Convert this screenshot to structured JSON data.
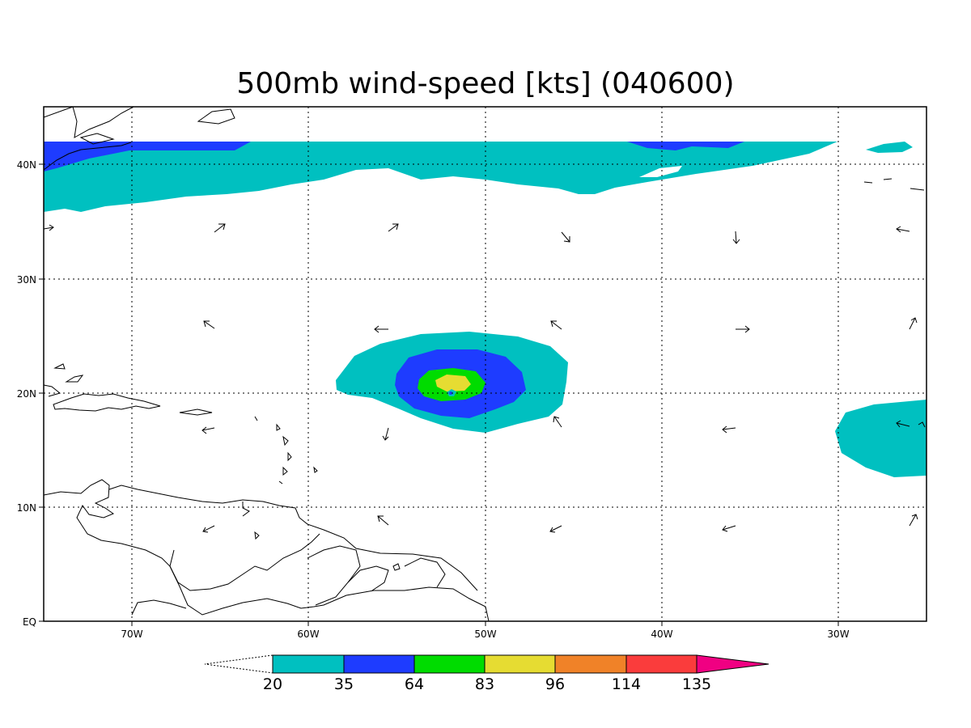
{
  "title": "500mb wind-speed [kts] (040600)",
  "x_tick_labels": [
    "70W",
    "60W",
    "50W",
    "40W",
    "30W"
  ],
  "y_tick_labels": [
    "EQ",
    "10N",
    "20N",
    "30N",
    "40N"
  ],
  "colorbar": {
    "labels": [
      "20",
      "35",
      "64",
      "83",
      "96",
      "114",
      "135"
    ],
    "colors": [
      "#00c0c0",
      "#1e3cff",
      "#00dc00",
      "#e6dc32",
      "#f08228",
      "#fa3c3c",
      "#f00082"
    ]
  },
  "colors": {
    "cyan": "#00c0c0",
    "blue": "#1e3cff",
    "green": "#00dc00",
    "yellow": "#e6dc32"
  }
}
